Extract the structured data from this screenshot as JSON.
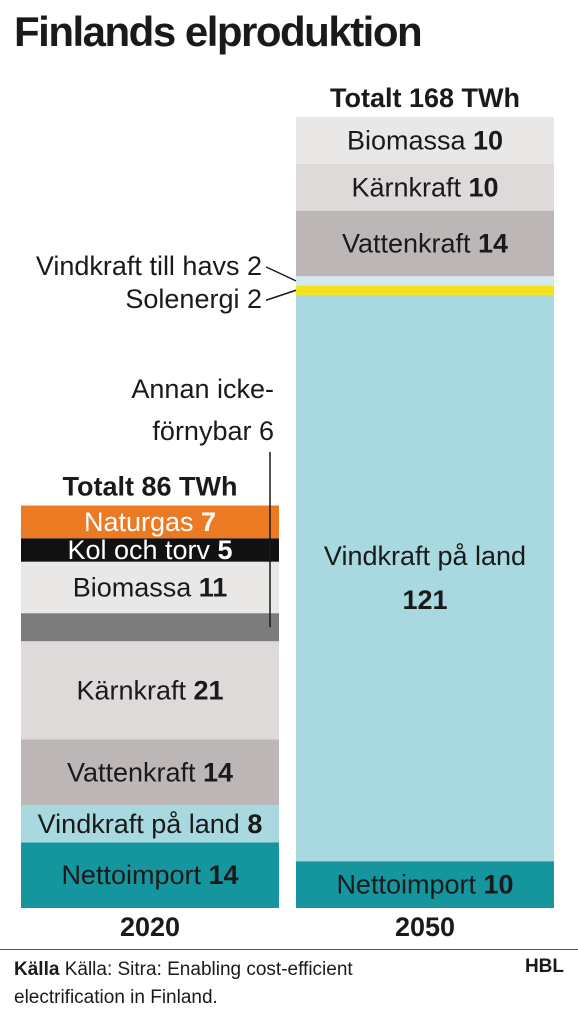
{
  "title": "Finlands elproduktion",
  "footer": {
    "source_label": "Källa",
    "source_text": "Källa: Sitra: Enabling cost-efficient electrification in Finland.",
    "brand": "HBL"
  },
  "chart_data": {
    "type": "bar",
    "stacked": true,
    "unit": "TWh",
    "categories": [
      "2020",
      "2050"
    ],
    "bars": [
      {
        "year": "2020",
        "total_label": "Totalt 86 TWh",
        "segments": [
          {
            "name": "Nettoimport",
            "value": 14,
            "color": "#15969e",
            "label_color": "#1a1a1a"
          },
          {
            "name": "Vindkraft på land",
            "value": 8,
            "color": "#a9d9e0",
            "label_color": "#1a1a1a"
          },
          {
            "name": "Vattenkraft",
            "value": 14,
            "color": "#bcb7b6",
            "label_color": "#1a1a1a"
          },
          {
            "name": "Kärnkraft",
            "value": 21,
            "color": "#dddad9",
            "label_color": "#1a1a1a"
          },
          {
            "name": "Annan icke-förnybar",
            "value": 6,
            "color": "#7c7c7c",
            "label_color": ""
          },
          {
            "name": "Biomassa",
            "value": 11,
            "color": "#e9e8e7",
            "label_color": "#1a1a1a"
          },
          {
            "name": "Kol och torv",
            "value": 5,
            "color": "#111111",
            "label_color": "#ffffff"
          },
          {
            "name": "Naturgas",
            "value": 7,
            "color": "#ec7a22",
            "label_color": "#ffffff"
          }
        ]
      },
      {
        "year": "2050",
        "total_label": "Totalt 168 TWh",
        "segments": [
          {
            "name": "Nettoimport",
            "value": 10,
            "color": "#15969e",
            "label_color": "#1a1a1a"
          },
          {
            "name": "Vindkraft på land",
            "value": 121,
            "color": "#a9d9e0",
            "label_color": "#1a1a1a"
          },
          {
            "name": "Solenergi",
            "value": 2,
            "color": "#f4e21a",
            "label_color": ""
          },
          {
            "name": "Vindkraft till havs",
            "value": 2,
            "color": "#d3e9ee",
            "label_color": ""
          },
          {
            "name": "Vattenkraft",
            "value": 14,
            "color": "#bcb7b6",
            "label_color": "#1a1a1a"
          },
          {
            "name": "Kärnkraft",
            "value": 10,
            "color": "#dddad9",
            "label_color": "#1a1a1a"
          },
          {
            "name": "Biomassa",
            "value": 10,
            "color": "#e9e8e7",
            "label_color": "#1a1a1a"
          }
        ]
      }
    ],
    "annotations": [
      {
        "bar": "2050",
        "segment": "Vindkraft till havs",
        "text": "Vindkraft till havs 2"
      },
      {
        "bar": "2050",
        "segment": "Solenergi",
        "text": "Solenergi 2"
      },
      {
        "bar": "2020",
        "segment": "Annan icke-förnybar",
        "lines": [
          "Annan icke-",
          "förnybar 6"
        ]
      }
    ]
  }
}
